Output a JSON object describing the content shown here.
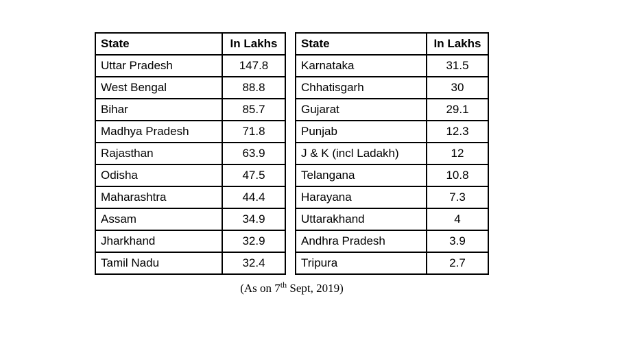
{
  "tables": [
    {
      "headers": [
        "State",
        "In Lakhs"
      ],
      "rows": [
        [
          "Uttar Pradesh",
          "147.8"
        ],
        [
          "West Bengal",
          "88.8"
        ],
        [
          "Bihar",
          "85.7"
        ],
        [
          "Madhya Pradesh",
          "71.8"
        ],
        [
          "Rajasthan",
          "63.9"
        ],
        [
          "Odisha",
          "47.5"
        ],
        [
          "Maharashtra",
          "44.4"
        ],
        [
          "Assam",
          "34.9"
        ],
        [
          "Jharkhand",
          "32.9"
        ],
        [
          "Tamil Nadu",
          "32.4"
        ]
      ]
    },
    {
      "headers": [
        "State",
        "In Lakhs"
      ],
      "rows": [
        [
          "Karnataka",
          "31.5"
        ],
        [
          "Chhatisgarh",
          "30"
        ],
        [
          "Gujarat",
          "29.1"
        ],
        [
          "Punjab",
          "12.3"
        ],
        [
          "J & K (incl Ladakh)",
          "12"
        ],
        [
          "Telangana",
          "10.8"
        ],
        [
          "Harayana",
          "7.3"
        ],
        [
          "Uttarakhand",
          "4"
        ],
        [
          "Andhra Pradesh",
          "3.9"
        ],
        [
          "Tripura",
          "2.7"
        ]
      ]
    }
  ],
  "caption": {
    "prefix": "(As on 7",
    "ordinal": "th",
    "suffix": " Sept, 2019)"
  }
}
